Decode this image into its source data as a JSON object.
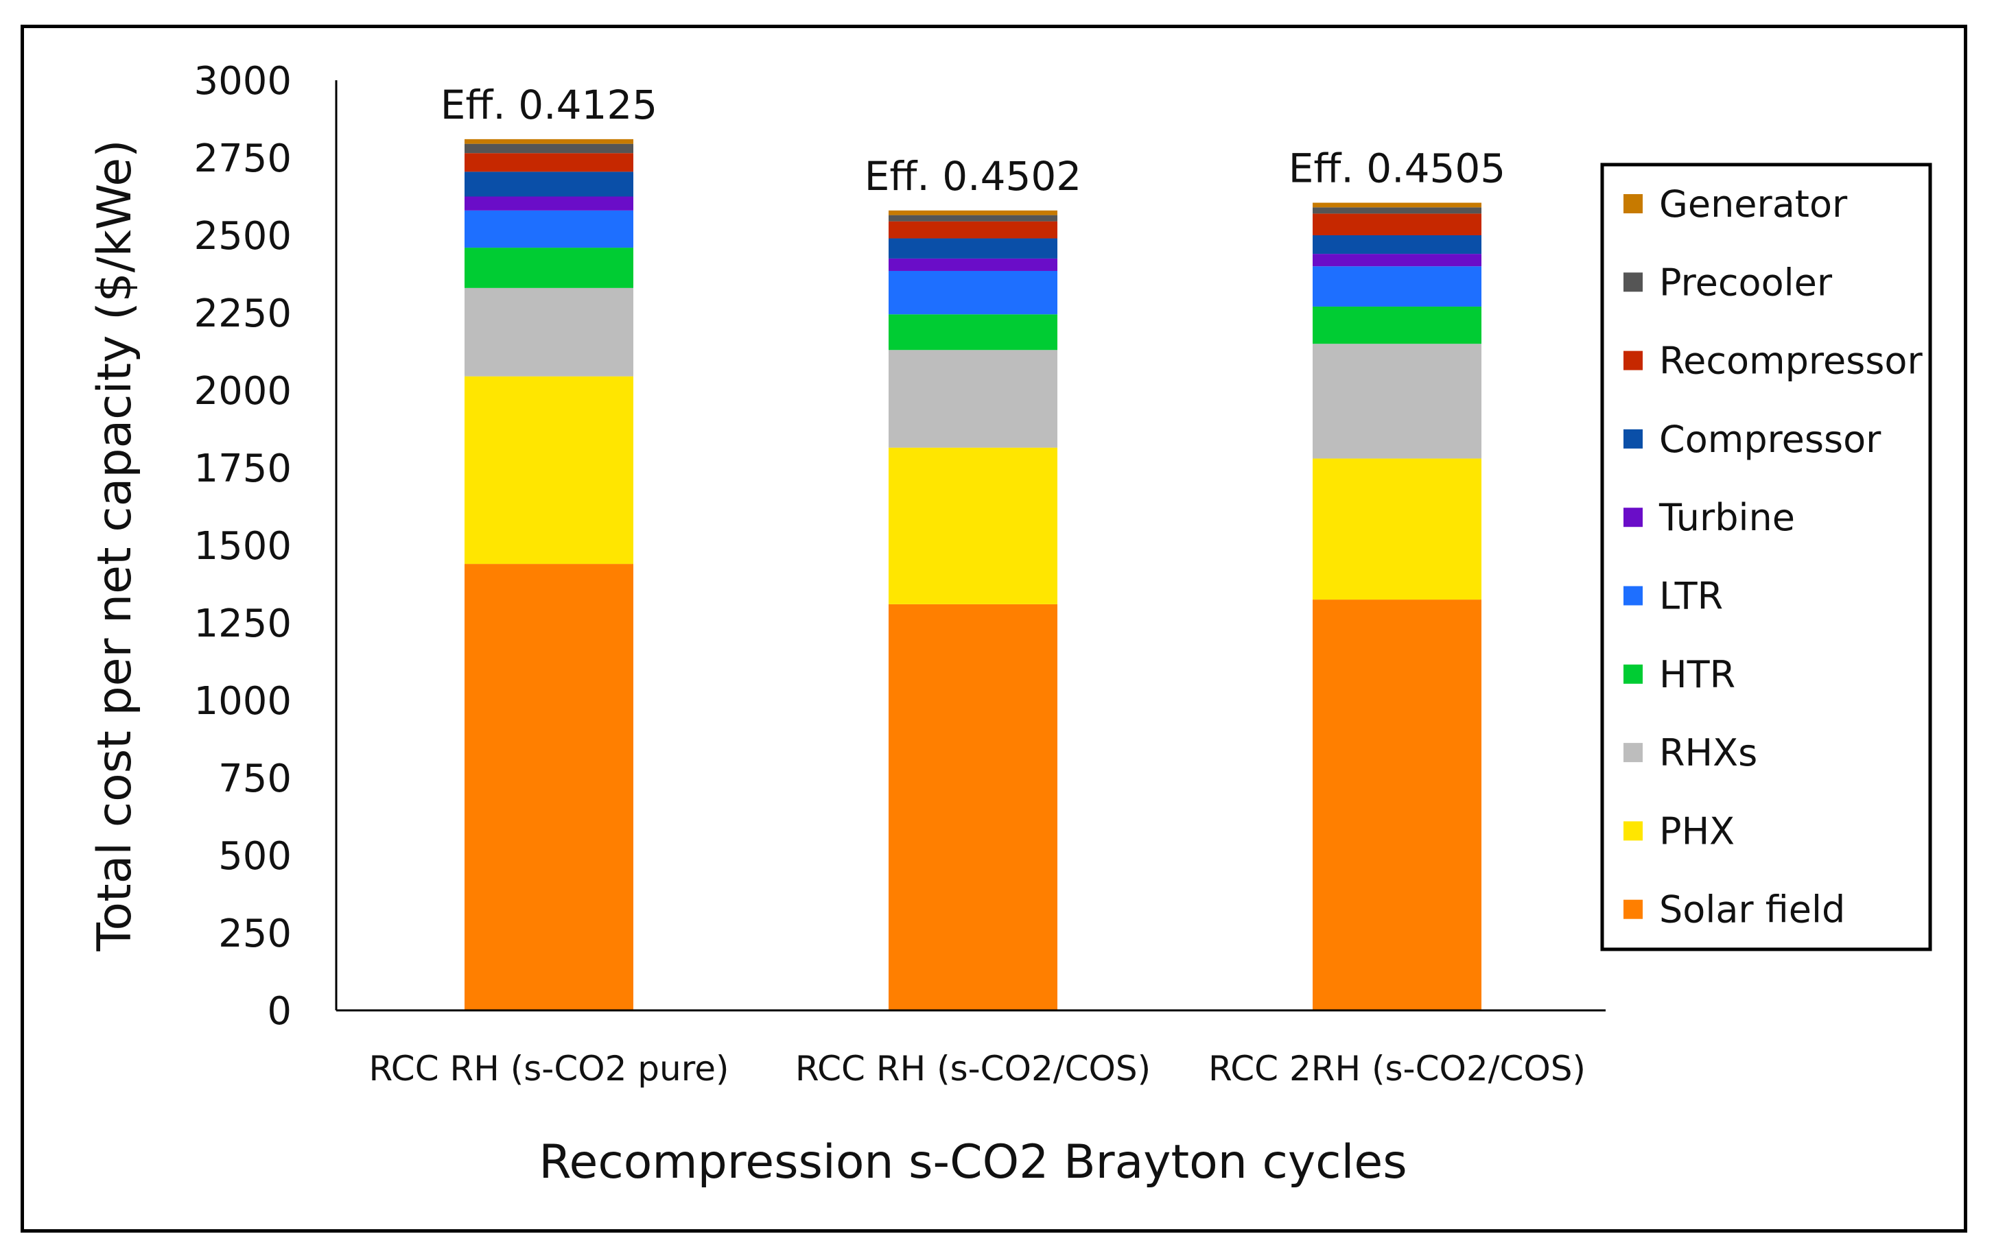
{
  "chart_data": {
    "type": "bar",
    "stacked": true,
    "title": "",
    "xlabel": "Recompression s-CO2 Brayton cycles",
    "ylabel": "Total cost per net capacity ($/kWe)",
    "ylim": [
      0,
      3000
    ],
    "yticks": [
      0,
      250,
      500,
      750,
      1000,
      1250,
      1500,
      1750,
      2000,
      2250,
      2500,
      2750,
      3000
    ],
    "categories": [
      "RCC RH (s-CO2 pure)",
      "RCC RH (s-CO2/COS)",
      "RCC 2RH (s-CO2/COS)"
    ],
    "annotations": [
      "Eff. 0.4125",
      "Eff. 0.4502",
      "Eff. 0.4505"
    ],
    "legend_position": "right",
    "series": [
      {
        "name": "Solar field",
        "color": "#FF7F00",
        "values": [
          1440,
          1310,
          1325
        ]
      },
      {
        "name": "PHX",
        "color": "#FFE600",
        "values": [
          605,
          505,
          455
        ]
      },
      {
        "name": "RHXs",
        "color": "#BDBDBD",
        "values": [
          285,
          315,
          370
        ]
      },
      {
        "name": "HTR",
        "color": "#00CC33",
        "values": [
          130,
          115,
          120
        ]
      },
      {
        "name": "LTR",
        "color": "#1E6FFF",
        "values": [
          120,
          140,
          130
        ]
      },
      {
        "name": "Turbine",
        "color": "#6A0DC8",
        "values": [
          45,
          40,
          40
        ]
      },
      {
        "name": "Compressor",
        "color": "#0A4FA8",
        "values": [
          80,
          65,
          60
        ]
      },
      {
        "name": "Recompressor",
        "color": "#C62800",
        "values": [
          60,
          55,
          70
        ]
      },
      {
        "name": "Precooler",
        "color": "#555555",
        "values": [
          30,
          20,
          20
        ]
      },
      {
        "name": "Generator",
        "color": "#C77A00",
        "values": [
          15,
          15,
          15
        ]
      }
    ]
  }
}
